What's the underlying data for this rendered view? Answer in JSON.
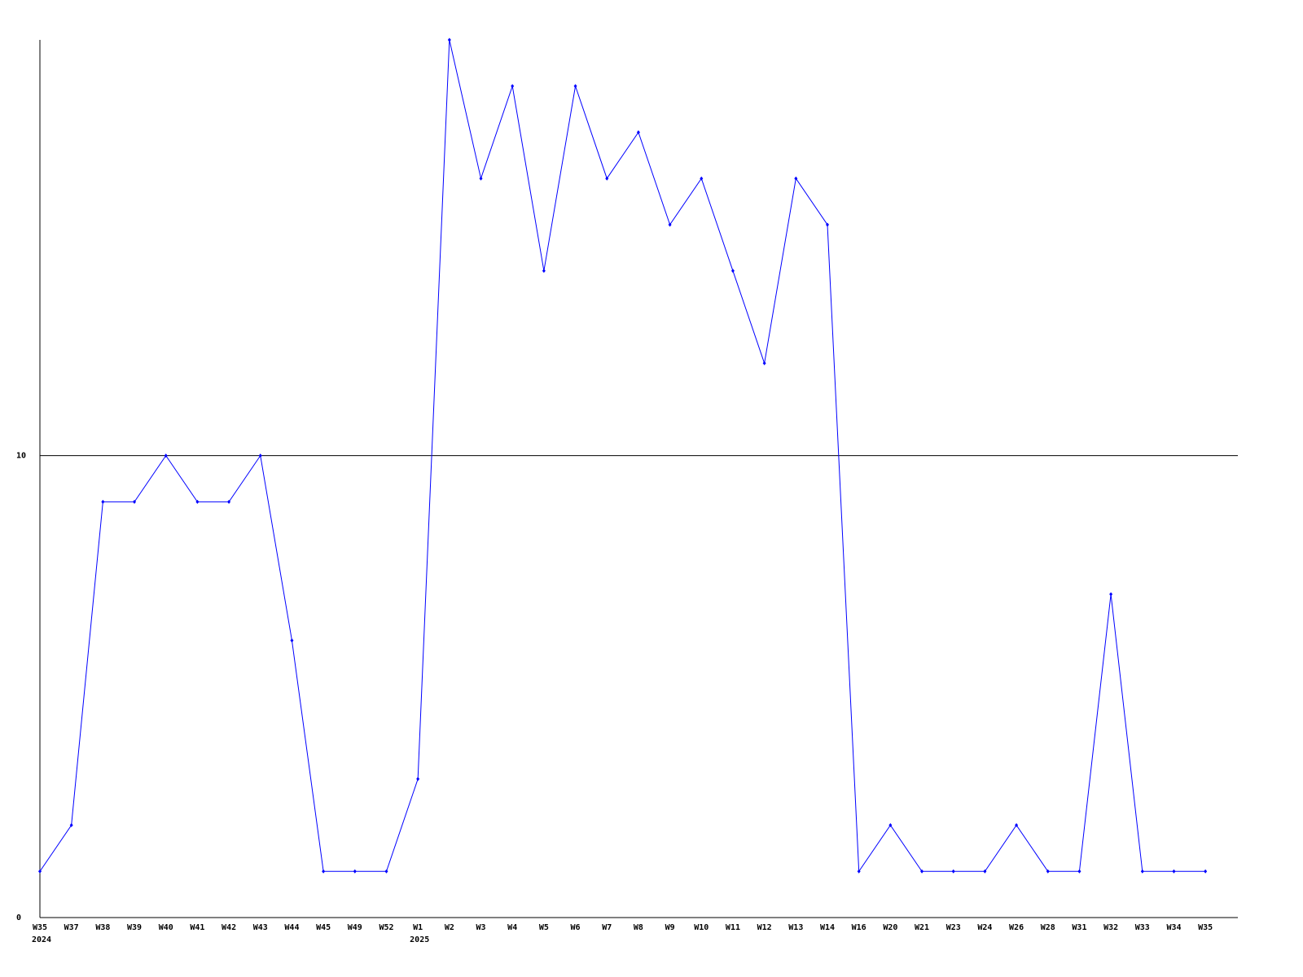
{
  "chart_data": {
    "type": "line",
    "title": "",
    "xlabel": "",
    "ylabel": "",
    "categories": [
      "W35",
      "W37",
      "W38",
      "W39",
      "W40",
      "W41",
      "W42",
      "W43",
      "W44",
      "W45",
      "W49",
      "W52",
      "W1",
      "W2",
      "W3",
      "W4",
      "W5",
      "W6",
      "W7",
      "W8",
      "W9",
      "W10",
      "W11",
      "W12",
      "W13",
      "W14",
      "W16",
      "W20",
      "W21",
      "W23",
      "W24",
      "W26",
      "W28",
      "W31",
      "W32",
      "W33",
      "W34",
      "W35"
    ],
    "year_labels": [
      {
        "index": 0,
        "label": "2024"
      },
      {
        "index": 12,
        "label": "2025"
      }
    ],
    "values": [
      1,
      2,
      9,
      9,
      10,
      9,
      9,
      10,
      6,
      1,
      1,
      1,
      3,
      19,
      16,
      18,
      14,
      18,
      16,
      17,
      15,
      16,
      14,
      12,
      16,
      15,
      1,
      2,
      1,
      1,
      1,
      2,
      1,
      1,
      7,
      1,
      1,
      1
    ],
    "ylim": [
      0,
      19
    ],
    "yticks": [
      0,
      10
    ],
    "grid": "horizontal line at 10",
    "legend": "none",
    "colors": {
      "line": "#0000ff",
      "axis": "#000000"
    }
  }
}
